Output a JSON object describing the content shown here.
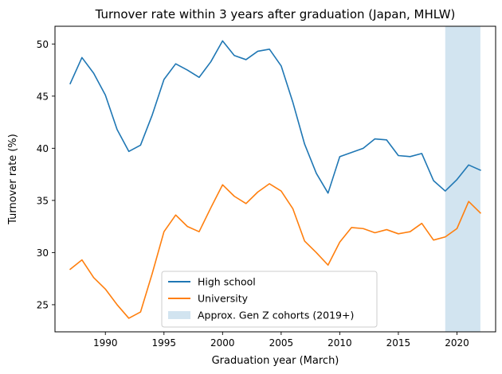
{
  "chart_data": {
    "type": "line",
    "title": "Turnover rate within 3 years after graduation (Japan, MHLW)",
    "xlabel": "Graduation year (March)",
    "ylabel": "Turnover rate (%)",
    "xlim": [
      1985.7,
      2023.3
    ],
    "ylim": [
      22.4,
      51.7
    ],
    "xticks": [
      1990,
      1995,
      2000,
      2005,
      2010,
      2015,
      2020
    ],
    "yticks": [
      25,
      30,
      35,
      40,
      45,
      50
    ],
    "grid": false,
    "legend_position": "lower-center",
    "x": [
      1987,
      1988,
      1989,
      1990,
      1991,
      1992,
      1993,
      1994,
      1995,
      1996,
      1997,
      1998,
      1999,
      2000,
      2001,
      2002,
      2003,
      2004,
      2005,
      2006,
      2007,
      2008,
      2009,
      2010,
      2011,
      2012,
      2013,
      2014,
      2015,
      2016,
      2017,
      2018,
      2019,
      2020,
      2021,
      2022
    ],
    "series": [
      {
        "name": "High school",
        "color": "#1f77b4",
        "values": [
          46.2,
          48.7,
          47.2,
          45.1,
          41.8,
          39.7,
          40.3,
          43.2,
          46.6,
          48.1,
          47.5,
          46.8,
          48.3,
          50.3,
          48.9,
          48.5,
          49.3,
          49.5,
          47.9,
          44.4,
          40.4,
          37.6,
          35.7,
          39.2,
          39.6,
          40.0,
          40.9,
          40.8,
          39.3,
          39.2,
          39.5,
          36.9,
          35.9,
          37.0,
          38.4,
          37.9
        ]
      },
      {
        "name": "University",
        "color": "#ff7f0e",
        "values": [
          28.4,
          29.3,
          27.6,
          26.5,
          25.0,
          23.7,
          24.3,
          28.0,
          32.0,
          33.6,
          32.5,
          32.0,
          34.3,
          36.5,
          35.4,
          34.7,
          35.8,
          36.6,
          35.9,
          34.2,
          31.1,
          30.0,
          28.8,
          31.0,
          32.4,
          32.3,
          31.9,
          32.2,
          31.8,
          32.0,
          32.8,
          31.2,
          31.5,
          32.3,
          34.9,
          33.8
        ]
      }
    ],
    "shaded_region": {
      "name": "Approx. Gen Z cohorts (2019+)",
      "x_range": [
        2019,
        2022
      ],
      "color": "#1f77b4",
      "opacity": 0.2
    }
  }
}
